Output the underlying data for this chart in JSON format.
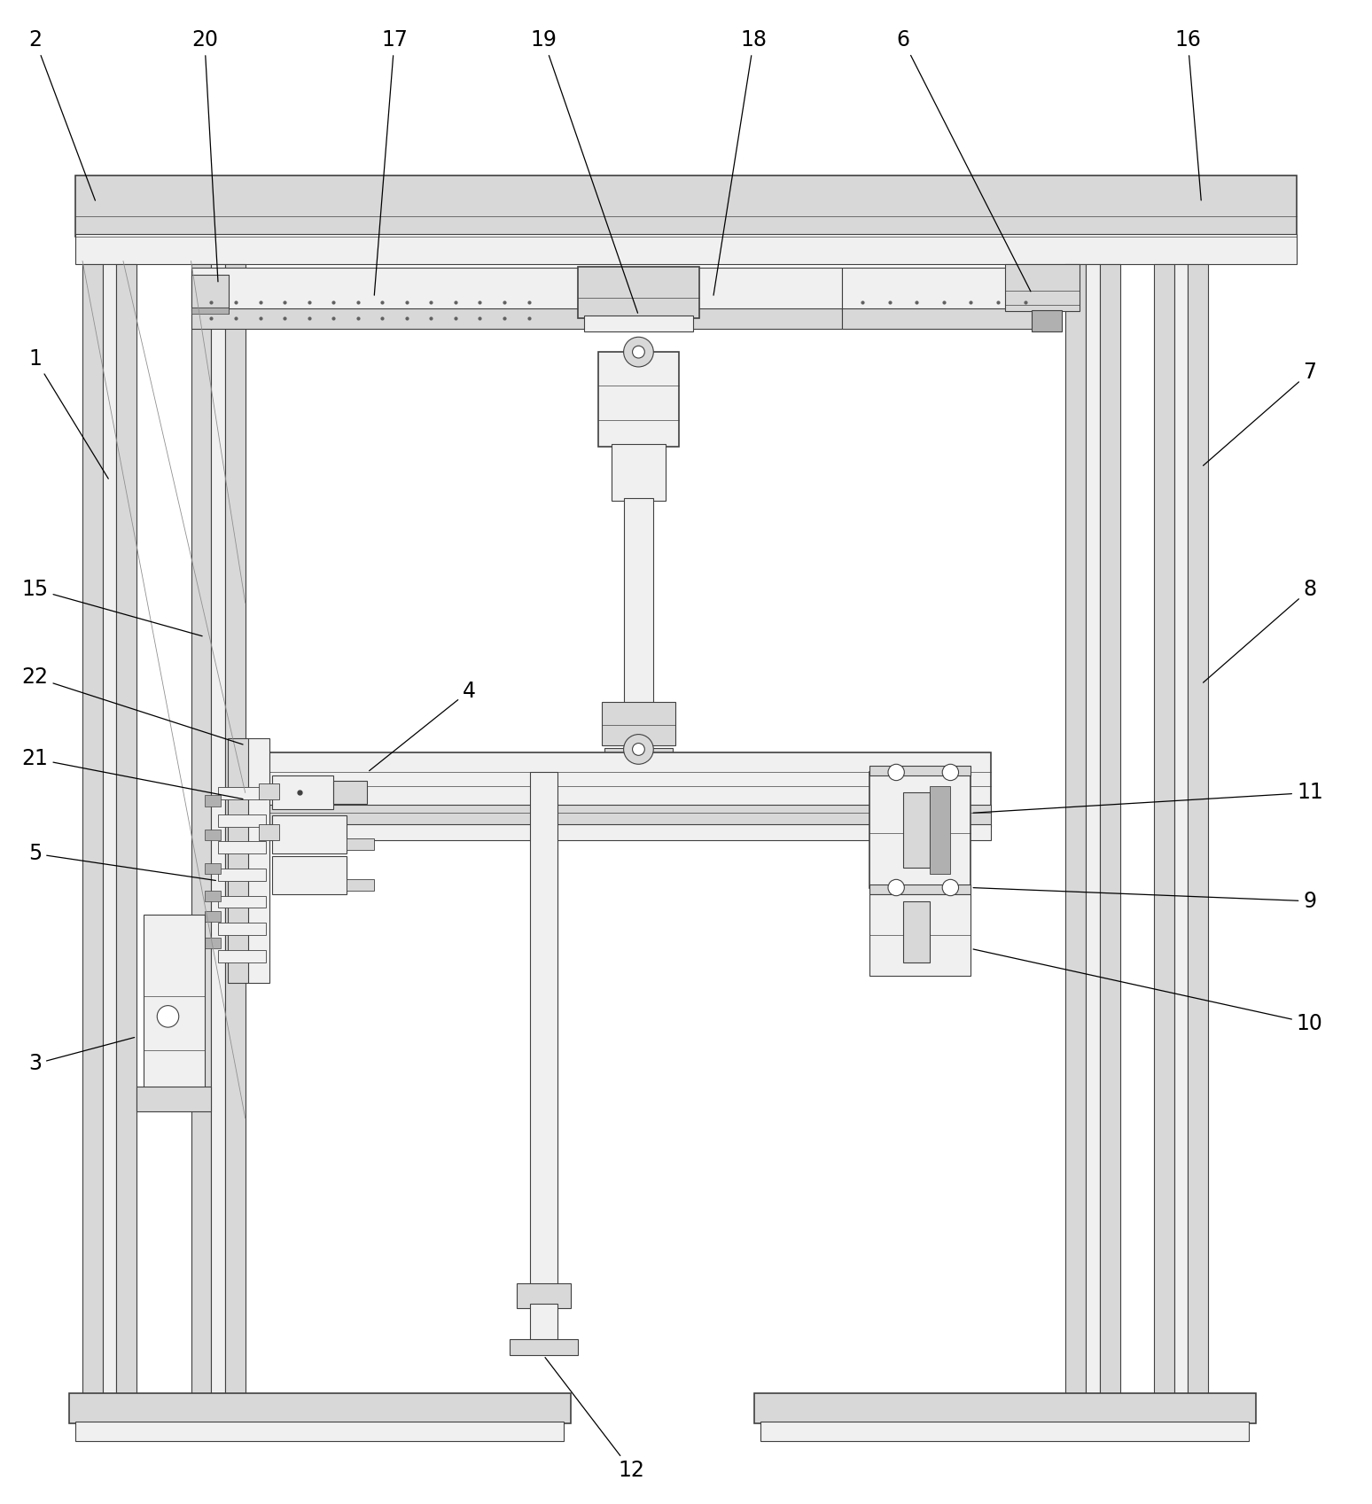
{
  "figsize": [
    15.48,
    16.97
  ],
  "dpi": 100,
  "bg_color": "#ffffff",
  "lc": "#404040",
  "lw": 0.8,
  "lw2": 1.2,
  "fc_white": "#ffffff",
  "fc_light": "#f0f0f0",
  "fc_med": "#d8d8d8",
  "fc_dark": "#b0b0b0",
  "label_fs": 17
}
